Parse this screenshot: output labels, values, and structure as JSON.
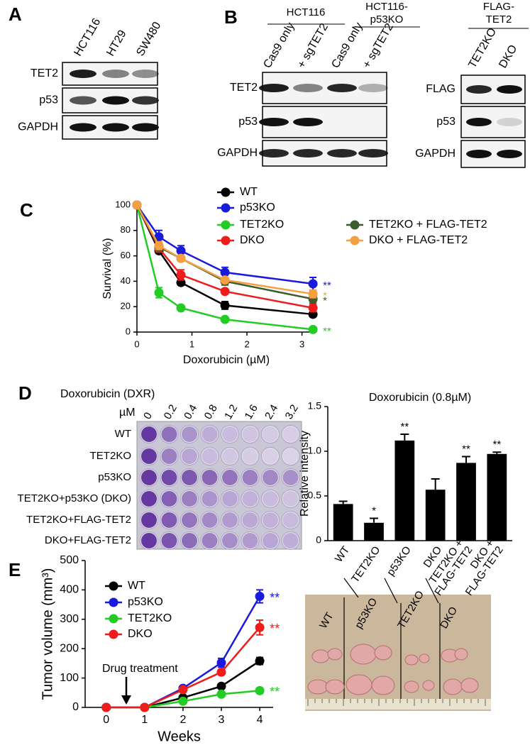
{
  "panels": {
    "a": "A",
    "b": "B",
    "c": "C",
    "d": "D",
    "e": "E"
  },
  "blot_a": {
    "lanes": [
      "HCT116",
      "HT29",
      "SW480"
    ],
    "rows": [
      "TET2",
      "p53",
      "GAPDH"
    ]
  },
  "blot_b": {
    "group1": [
      "HCT116"
    ],
    "group2": [
      "HCT116-",
      "p53KO"
    ],
    "lanes": [
      "Cas9 only",
      "+ sgTET2",
      "Cas9 only",
      "+ sgTET2"
    ],
    "rows": [
      "TET2",
      "p53",
      "GAPDH"
    ]
  },
  "blot_flag": {
    "header": [
      "FLAG-",
      "TET2"
    ],
    "lanes": [
      "TET2KO",
      "DKO"
    ],
    "rows": [
      "FLAG",
      "p53",
      "GAPDH"
    ]
  },
  "plate": {
    "title": "Doxorubicin (DXR)",
    "unit": "µM",
    "concentrations": [
      0,
      0.2,
      0.4,
      0.8,
      1.2,
      1.6,
      2.4,
      3.2
    ],
    "rows": [
      "WT",
      "TET2KO",
      "p53KO",
      "TET2KO+p53KO (DKO)",
      "TET2KO+FLAG-TET2",
      "DKO+FLAG-TET2"
    ]
  },
  "photo": {
    "labels": [
      "WT",
      "p53KO",
      "TET2KO",
      "DKO"
    ]
  },
  "chart_data": [
    {
      "type": "line",
      "xlabel": "Doxorubicin (µM)",
      "ylabel": "Survival (%)",
      "x": [
        0,
        0.4,
        0.8,
        1.6,
        3.2
      ],
      "xlim": [
        0,
        3.25
      ],
      "xticks": [
        0,
        1,
        2,
        3
      ],
      "ylim": [
        0,
        100
      ],
      "yticks": [
        0,
        20,
        40,
        60,
        80,
        100
      ],
      "series": [
        {
          "name": "WT",
          "color": "#000000",
          "values": [
            100,
            64,
            39,
            21,
            14
          ],
          "errors": [
            0,
            2,
            2,
            3,
            2
          ]
        },
        {
          "name": "p53KO",
          "color": "#1a1adc",
          "values": [
            100,
            75,
            64,
            47,
            38
          ],
          "errors": [
            0,
            5,
            4,
            4,
            5
          ],
          "significance": "**"
        },
        {
          "name": "TET2KO",
          "color": "#22cc22",
          "values": [
            100,
            31,
            19,
            10,
            2
          ],
          "errors": [
            0,
            4,
            1,
            1,
            1
          ],
          "significance": "**"
        },
        {
          "name": "DKO",
          "color": "#ee1c1c",
          "values": [
            100,
            66,
            45,
            32,
            19
          ],
          "errors": [
            0,
            3,
            4,
            2,
            3
          ]
        },
        {
          "name": "TET2KO + FLAG-TET2",
          "color": "#3d5c2c",
          "values": [
            100,
            67,
            58,
            40,
            26
          ],
          "errors": [
            0,
            3,
            2,
            3,
            3
          ],
          "significance": "*"
        },
        {
          "name": "DKO + FLAG-TET2",
          "color": "#f5a040",
          "values": [
            100,
            68,
            58,
            41,
            30
          ],
          "errors": [
            0,
            3,
            2,
            2,
            3
          ],
          "significance": "*"
        }
      ]
    },
    {
      "type": "bar",
      "title": "Doxorubicin (0.8µM)",
      "ylabel": "Relative intensity",
      "categories": [
        "WT",
        "TET2KO",
        "p53KO",
        "DKO",
        [
          "TET2KO +",
          "FLAG-TET2"
        ],
        [
          "DKO +",
          "FLAG-TET2"
        ]
      ],
      "values": [
        0.41,
        0.2,
        1.12,
        0.57,
        0.87,
        0.97
      ],
      "errors": [
        0.03,
        0.05,
        0.07,
        0.12,
        0.07,
        0.02
      ],
      "significance": [
        null,
        "*",
        "**",
        null,
        "**",
        "**"
      ],
      "color": "#000000",
      "ylim": [
        0,
        1.5
      ],
      "yticks": [
        0,
        0.5,
        {
          "value": 1,
          "label": "1.0"
        },
        1.5
      ]
    },
    {
      "type": "line",
      "xlabel": "Weeks",
      "ylabel": "Tumor volume (mm³)",
      "annotation": "Drug treatment",
      "x": [
        0,
        1,
        2,
        3,
        4
      ],
      "xlim": [
        -0.55,
        4.35
      ],
      "xticks": [
        0,
        1,
        2,
        3,
        4
      ],
      "ylim": [
        0,
        500
      ],
      "yticks": [
        0,
        100,
        200,
        300,
        400,
        500
      ],
      "series": [
        {
          "name": "WT",
          "color": "#000000",
          "values": [
            0,
            0,
            33,
            72,
            158
          ],
          "errors": [
            0,
            0,
            5,
            6,
            12
          ]
        },
        {
          "name": "p53KO",
          "color": "#1a1adc",
          "values": [
            0,
            0,
            65,
            152,
            378
          ],
          "errors": [
            0,
            0,
            6,
            15,
            22
          ],
          "significance": "**"
        },
        {
          "name": "TET2KO",
          "color": "#22cc22",
          "values": [
            0,
            0,
            21,
            45,
            57
          ],
          "errors": [
            0,
            0,
            3,
            4,
            9
          ],
          "significance": "**"
        },
        {
          "name": "DKO",
          "color": "#ee1c1c",
          "values": [
            0,
            0,
            60,
            120,
            272
          ],
          "errors": [
            0,
            0,
            5,
            8,
            25
          ],
          "significance": "**"
        }
      ]
    }
  ]
}
